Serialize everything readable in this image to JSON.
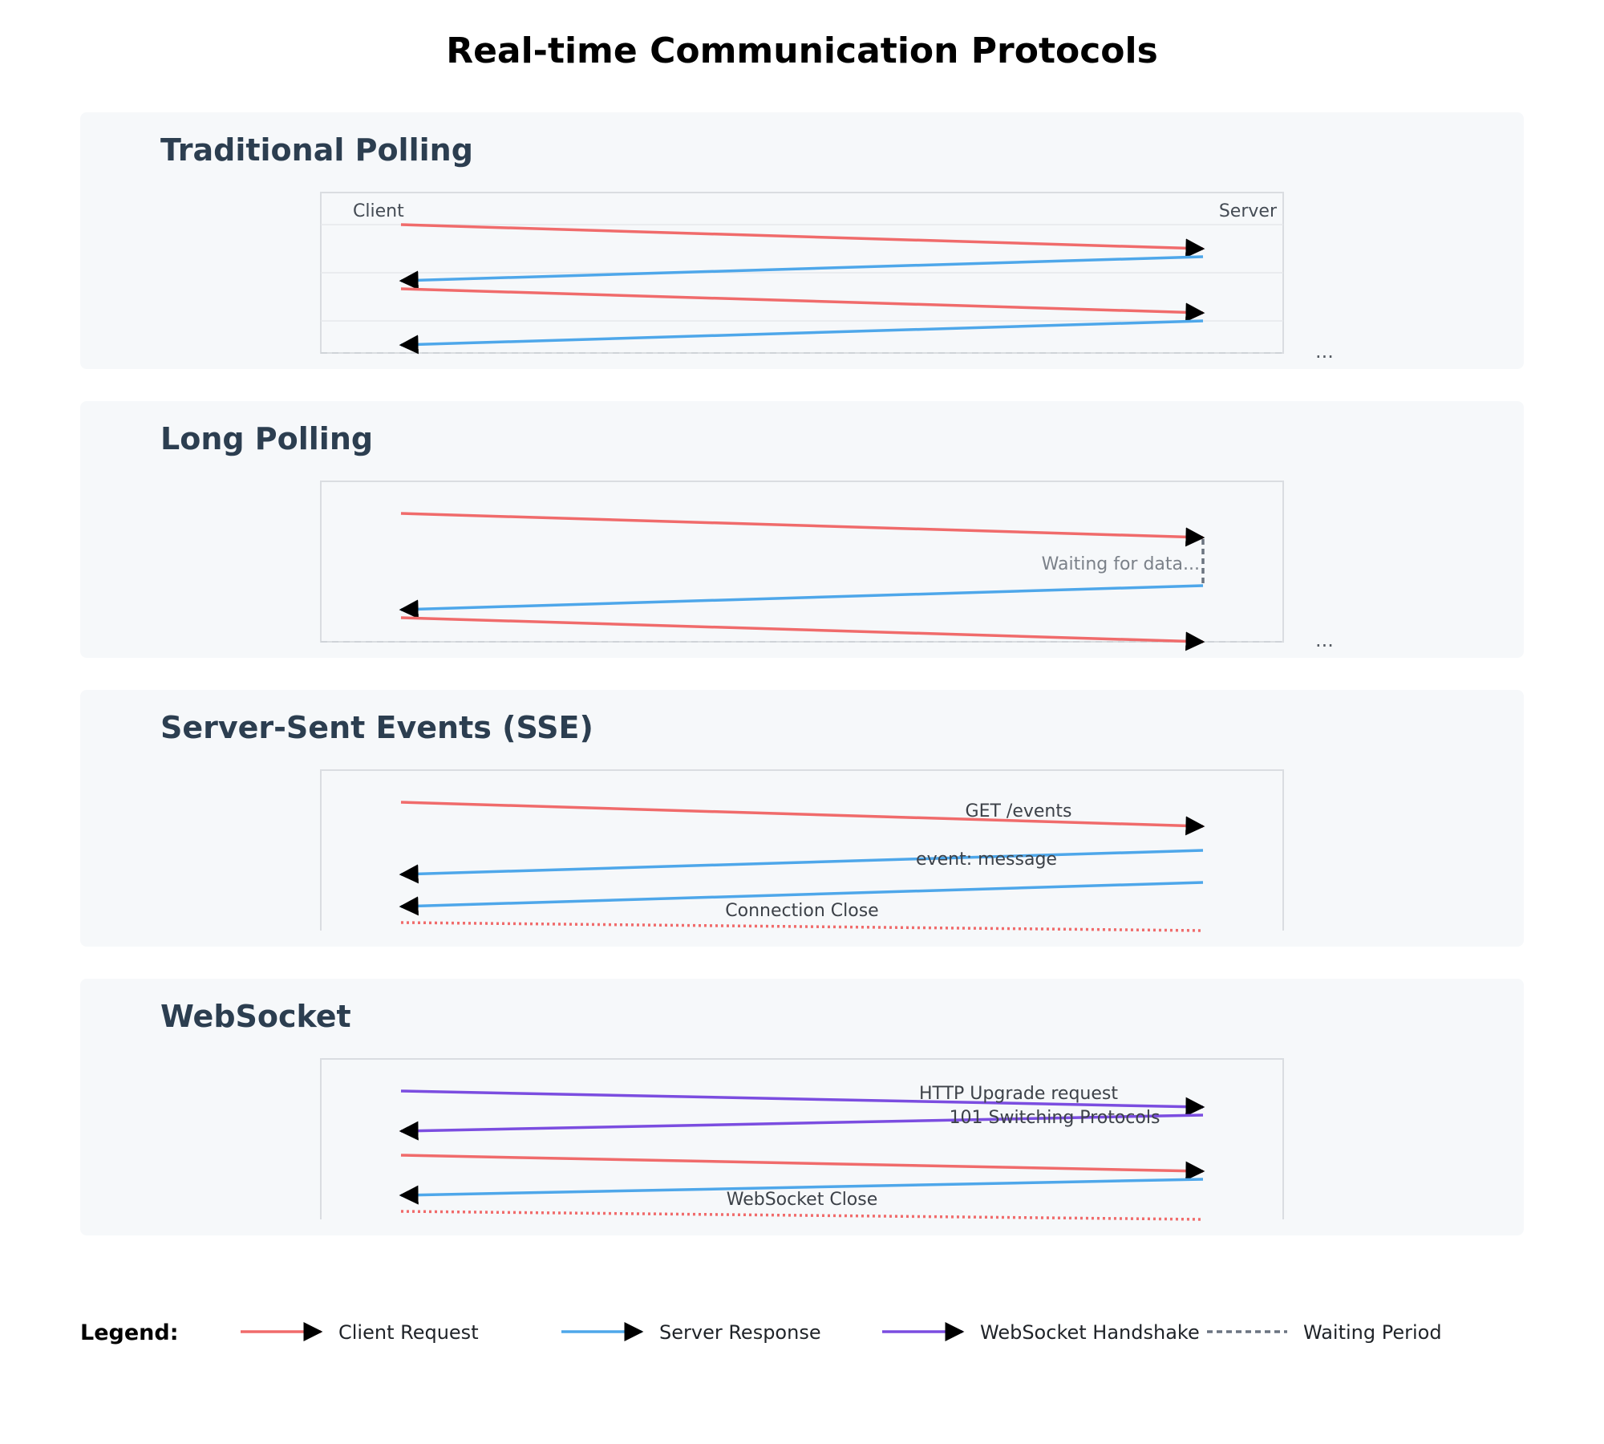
{
  "title": "Real-time Communication Protocols",
  "colors": {
    "client_request": "#f06b6b",
    "server_response": "#4ea7ea",
    "websocket_handshake": "#7b4de0",
    "waiting_period": "#6b7480",
    "arrowhead": "#000000",
    "panel_background": "#f6f8fa",
    "panel_title": "#2c3e50"
  },
  "panels": {
    "polling": {
      "title": "Traditional Polling",
      "client_label": "Client",
      "server_label": "Server",
      "ellipsis": "...",
      "messages": [
        {
          "kind": "client_request",
          "direction": "to-server"
        },
        {
          "kind": "server_response",
          "direction": "to-client"
        },
        {
          "kind": "client_request",
          "direction": "to-server"
        },
        {
          "kind": "server_response",
          "direction": "to-client"
        }
      ]
    },
    "long_polling": {
      "title": "Long Polling",
      "wait_label": "Waiting for data...",
      "ellipsis": "...",
      "messages": [
        {
          "kind": "client_request",
          "direction": "to-server"
        },
        {
          "kind": "waiting_period",
          "direction": "hold"
        },
        {
          "kind": "server_response",
          "direction": "to-client"
        },
        {
          "kind": "client_request",
          "direction": "to-server"
        }
      ]
    },
    "sse": {
      "title": "Server-Sent Events (SSE)",
      "request_label": "GET /events",
      "event_label": "event: message",
      "close_label": "Connection Close",
      "messages": [
        {
          "kind": "client_request",
          "direction": "to-server",
          "label": "GET /events"
        },
        {
          "kind": "server_response",
          "direction": "to-client",
          "label": "event: message"
        },
        {
          "kind": "server_response",
          "direction": "to-client"
        },
        {
          "kind": "client_request",
          "direction": "close",
          "label": "Connection Close"
        }
      ]
    },
    "websocket": {
      "title": "WebSocket",
      "upgrade_label": "HTTP Upgrade request",
      "switch_label": "101 Switching Protocols",
      "close_label": "WebSocket Close",
      "messages": [
        {
          "kind": "websocket_handshake",
          "direction": "to-server",
          "label": "HTTP Upgrade request"
        },
        {
          "kind": "websocket_handshake",
          "direction": "to-client",
          "label": "101 Switching Protocols"
        },
        {
          "kind": "client_request",
          "direction": "to-server"
        },
        {
          "kind": "server_response",
          "direction": "to-client"
        },
        {
          "kind": "client_request",
          "direction": "close",
          "label": "WebSocket Close"
        }
      ]
    }
  },
  "legend": {
    "title": "Legend:",
    "items": [
      {
        "label": "Client Request",
        "kind": "client_request"
      },
      {
        "label": "Server Response",
        "kind": "server_response"
      },
      {
        "label": "WebSocket Handshake",
        "kind": "websocket_handshake"
      },
      {
        "label": "Waiting Period",
        "kind": "waiting_period"
      }
    ]
  }
}
